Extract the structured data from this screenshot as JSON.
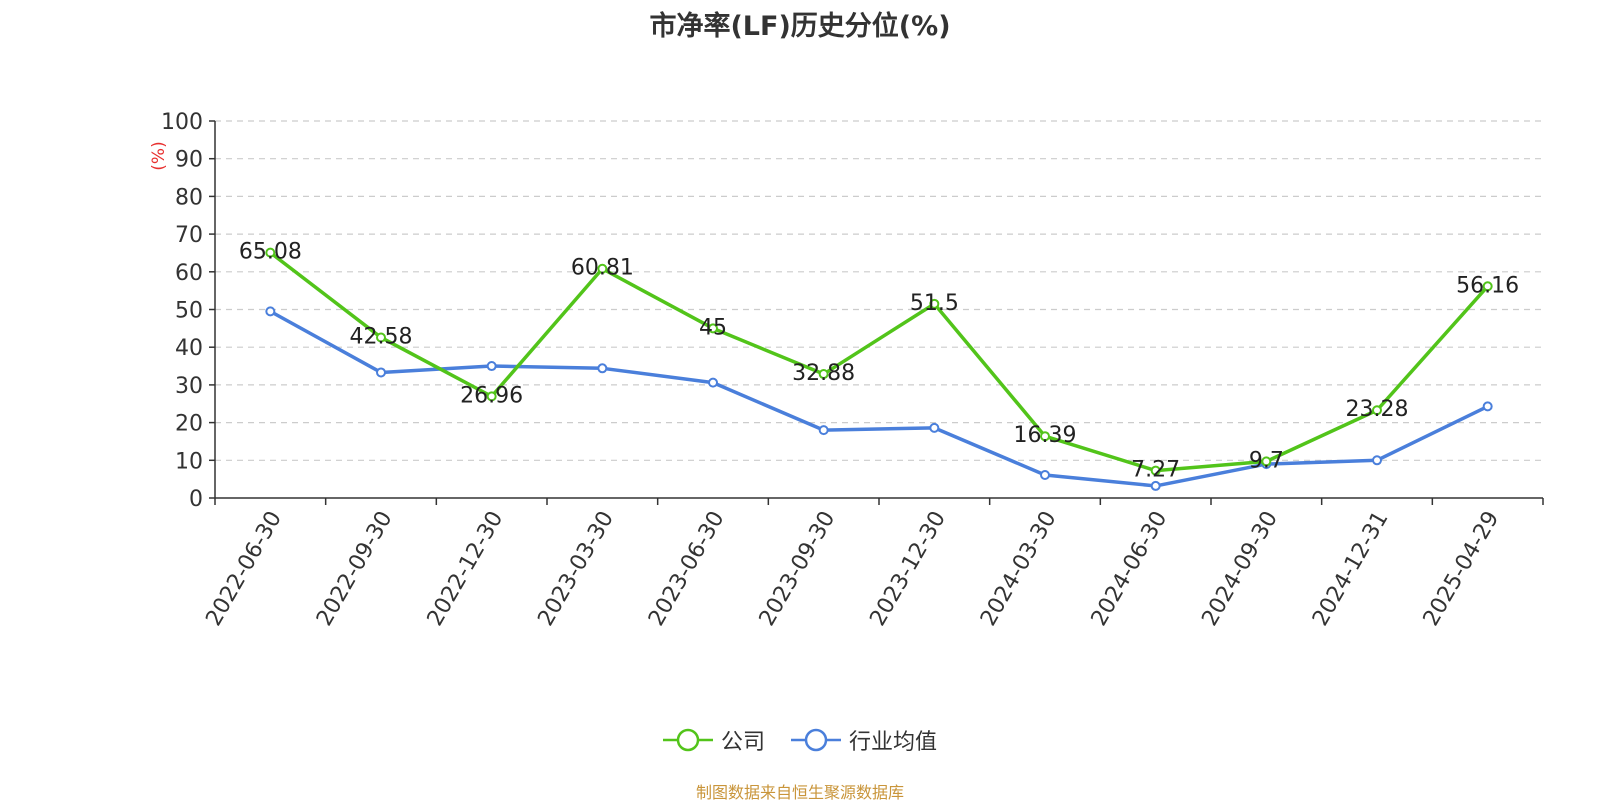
{
  "chart_data": {
    "type": "line",
    "title": "市净率(LF)历史分位(%)",
    "ylabel": "(%)",
    "ylim": [
      0,
      100
    ],
    "yticks": [
      0,
      10,
      20,
      30,
      40,
      50,
      60,
      70,
      80,
      90,
      100
    ],
    "categories": [
      "2022-06-30",
      "2022-09-30",
      "2022-12-30",
      "2023-03-30",
      "2023-06-30",
      "2023-09-30",
      "2023-12-30",
      "2024-03-30",
      "2024-06-30",
      "2024-09-30",
      "2024-12-31",
      "2025-04-29"
    ],
    "series": [
      {
        "name": "公司",
        "color": "#52c41a",
        "show_labels": true,
        "values": [
          65.08,
          42.58,
          26.96,
          60.81,
          45,
          32.88,
          51.5,
          16.39,
          7.27,
          9.7,
          23.28,
          56.16
        ]
      },
      {
        "name": "行业均值",
        "color": "#4a7fdb",
        "show_labels": false,
        "values": [
          49.5,
          33.3,
          35,
          34.4,
          30.6,
          18,
          18.6,
          6.1,
          3.2,
          9,
          10,
          24.3
        ]
      }
    ],
    "grid": true,
    "legend": "bottom-center",
    "source": "制图数据来自恒生聚源数据库"
  }
}
